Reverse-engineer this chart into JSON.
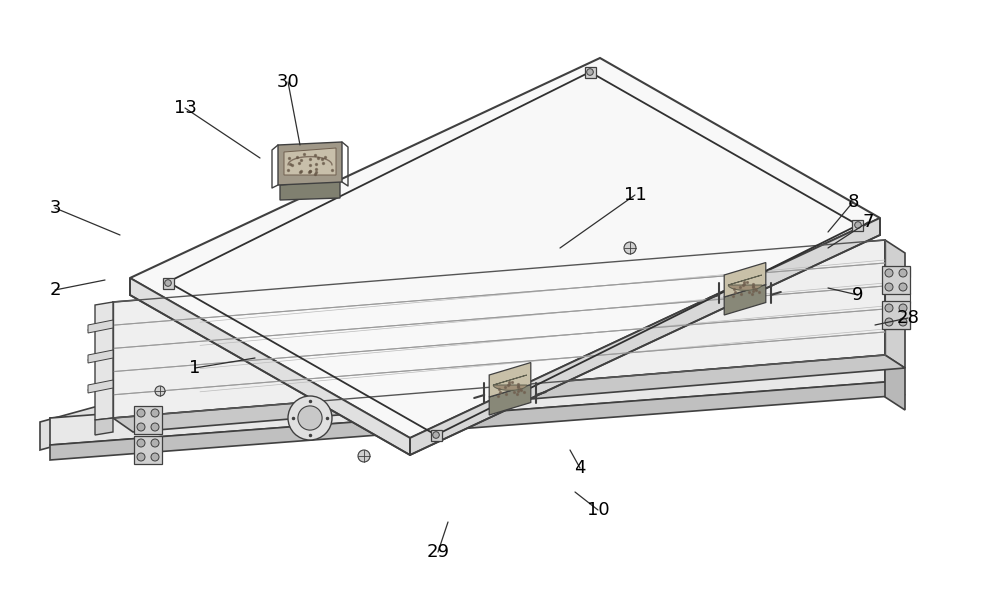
{
  "background_color": "#ffffff",
  "line_color": "#404040",
  "thin_line": "#606060",
  "label_fontsize": 13,
  "labels_data": [
    [
      "1",
      195,
      368,
      255,
      358
    ],
    [
      "2",
      55,
      290,
      105,
      280
    ],
    [
      "3",
      55,
      208,
      120,
      235
    ],
    [
      "4",
      580,
      468,
      570,
      450
    ],
    [
      "7",
      868,
      222,
      828,
      248
    ],
    [
      "8",
      853,
      202,
      828,
      232
    ],
    [
      "9",
      858,
      295,
      828,
      288
    ],
    [
      "10",
      598,
      510,
      575,
      492
    ],
    [
      "11",
      635,
      195,
      560,
      248
    ],
    [
      "13",
      185,
      108,
      260,
      158
    ],
    [
      "28",
      908,
      318,
      875,
      325
    ],
    [
      "29",
      438,
      552,
      448,
      522
    ],
    [
      "30",
      288,
      82,
      300,
      145
    ]
  ]
}
